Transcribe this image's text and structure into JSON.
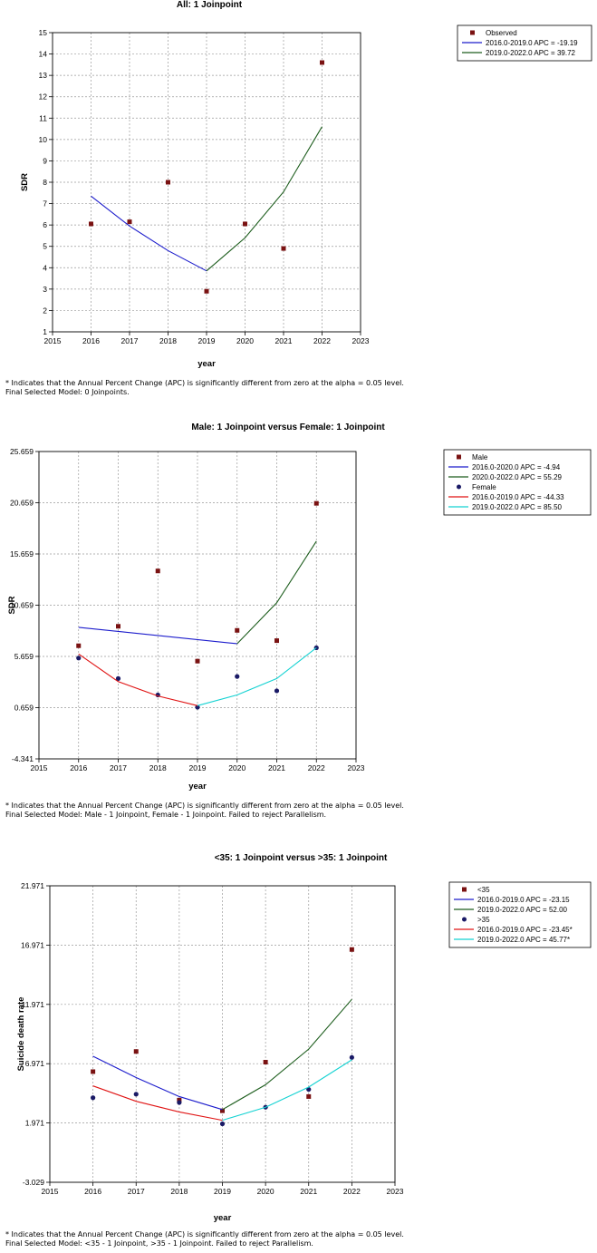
{
  "chart_data": [
    {
      "type": "line",
      "title": "All: 1 Joinpoint",
      "xlabel": "year",
      "ylabel": "SDR",
      "xlim": [
        2015,
        2023
      ],
      "ylim": [
        1,
        15
      ],
      "xticks": [
        2015,
        2016,
        2017,
        2018,
        2019,
        2020,
        2021,
        2022,
        2023
      ],
      "yticks": [
        "1",
        "2",
        "3",
        "4",
        "5",
        "6",
        "7",
        "8",
        "9",
        "10",
        "11",
        "12",
        "13",
        "14",
        "15"
      ],
      "ytick_values": [
        1,
        2,
        3,
        4,
        5,
        6,
        7,
        8,
        9,
        10,
        11,
        12,
        13,
        14,
        15
      ],
      "grid": true,
      "legend_position": "top-right",
      "series": [
        {
          "name": "Observed",
          "type": "scatter",
          "marker": "square",
          "color": "#7a1212",
          "x": [
            2016,
            2017,
            2018,
            2019,
            2020,
            2021,
            2022
          ],
          "y": [
            6.05,
            6.15,
            8.0,
            2.9,
            6.05,
            4.9,
            13.6
          ]
        },
        {
          "name": "2016.0-2019.0 APC  =  -19.19",
          "type": "line",
          "color": "#1c1ccc",
          "x": [
            2016,
            2017,
            2018,
            2019
          ],
          "y": [
            7.35,
            5.95,
            4.8,
            3.85
          ]
        },
        {
          "name": "2019.0-2022.0 APC  =  39.72",
          "type": "line",
          "color": "#1e5e1e",
          "x": [
            2019,
            2020,
            2021,
            2022
          ],
          "y": [
            3.85,
            5.4,
            7.55,
            10.6
          ]
        }
      ],
      "footnotes": [
        "* Indicates that the Annual Percent Change (APC) is significantly different from zero at the alpha = 0.05 level.",
        "Final Selected Model: 0 Joinpoints."
      ]
    },
    {
      "type": "line",
      "title": "Male: 1 Joinpoint  versus  Female: 1 Joinpoint",
      "xlabel": "year",
      "ylabel": "SDR",
      "xlim": [
        2015,
        2023
      ],
      "ylim": [
        -4.341,
        25.659
      ],
      "xticks": [
        2015,
        2016,
        2017,
        2018,
        2019,
        2020,
        2021,
        2022,
        2023
      ],
      "yticks": [
        "-4.341",
        "0.659",
        "5.659",
        "10.659",
        "15.659",
        "20.659",
        "25.659"
      ],
      "ytick_values": [
        -4.341,
        0.659,
        5.659,
        10.659,
        15.659,
        20.659,
        25.659
      ],
      "grid": true,
      "legend_position": "top-right",
      "series": [
        {
          "name": "Male",
          "type": "scatter",
          "marker": "square",
          "color": "#7a1212",
          "x": [
            2016,
            2017,
            2018,
            2019,
            2020,
            2021,
            2022
          ],
          "y": [
            6.7,
            8.6,
            14.0,
            5.2,
            8.2,
            7.2,
            20.6
          ]
        },
        {
          "name": "2016.0-2020.0 APC  =  -4.94",
          "type": "line",
          "color": "#1c1ccc",
          "x": [
            2016,
            2020
          ],
          "y": [
            8.5,
            6.9
          ]
        },
        {
          "name": "2020.0-2022.0 APC  =  55.29",
          "type": "line",
          "color": "#1e5e1e",
          "x": [
            2020,
            2021,
            2022
          ],
          "y": [
            6.9,
            10.9,
            16.9
          ]
        },
        {
          "name": "Female",
          "type": "scatter",
          "marker": "circle",
          "color": "#1a1a66",
          "x": [
            2016,
            2017,
            2018,
            2019,
            2020,
            2021,
            2022
          ],
          "y": [
            5.5,
            3.5,
            1.9,
            0.7,
            3.7,
            2.3,
            6.5
          ]
        },
        {
          "name": "2016.0-2019.0 APC  =  -44.33",
          "type": "line",
          "color": "#e01414",
          "x": [
            2016,
            2017,
            2018,
            2019
          ],
          "y": [
            5.9,
            3.2,
            1.8,
            0.85
          ]
        },
        {
          "name": "2019.0-2022.0 APC  =  85.50",
          "type": "line",
          "color": "#14d2d2",
          "x": [
            2019,
            2020,
            2021,
            2022
          ],
          "y": [
            0.85,
            1.9,
            3.5,
            6.5
          ]
        }
      ],
      "footnotes": [
        "* Indicates that the Annual Percent Change (APC) is significantly different from zero at the alpha = 0.05 level.",
        "Final Selected Model: Male - 1 Joinpoint, Female - 1 Joinpoint. Failed to reject Parallelism."
      ]
    },
    {
      "type": "line",
      "title": "<35: 1 Joinpoint  versus  >35: 1 Joinpoint",
      "xlabel": "year",
      "ylabel": "Suicide death rate",
      "xlim": [
        2015,
        2023
      ],
      "ylim": [
        -3.029,
        21.971
      ],
      "xticks": [
        2015,
        2016,
        2017,
        2018,
        2019,
        2020,
        2021,
        2022,
        2023
      ],
      "yticks": [
        "-3.029",
        "1.971",
        "6.971",
        "11.971",
        "16.971",
        "21.971"
      ],
      "ytick_values": [
        -3.029,
        1.971,
        6.971,
        11.971,
        16.971,
        21.971
      ],
      "grid": true,
      "legend_position": "top-right",
      "series": [
        {
          "name": "<35",
          "type": "scatter",
          "marker": "square",
          "color": "#7a1212",
          "x": [
            2016,
            2017,
            2018,
            2019,
            2020,
            2021,
            2022
          ],
          "y": [
            6.3,
            8.0,
            3.9,
            3.0,
            7.1,
            4.2,
            16.6
          ]
        },
        {
          "name": "2016.0-2019.0 APC  =  -23.15",
          "type": "line",
          "color": "#1c1ccc",
          "x": [
            2016,
            2017,
            2018,
            2019
          ],
          "y": [
            7.6,
            5.8,
            4.2,
            3.1
          ]
        },
        {
          "name": "2019.0-2022.0 APC  =  52.00",
          "type": "line",
          "color": "#1e5e1e",
          "x": [
            2019,
            2020,
            2021,
            2022
          ],
          "y": [
            3.1,
            5.2,
            8.2,
            12.4
          ]
        },
        {
          "name": ">35",
          "type": "scatter",
          "marker": "circle",
          "color": "#1a1a66",
          "x": [
            2016,
            2017,
            2018,
            2019,
            2020,
            2021,
            2022
          ],
          "y": [
            4.1,
            4.4,
            3.7,
            1.9,
            3.3,
            4.8,
            7.5
          ]
        },
        {
          "name": "2016.0-2019.0 APC  =  -23.45*",
          "type": "line",
          "color": "#e01414",
          "x": [
            2016,
            2017,
            2018,
            2019
          ],
          "y": [
            5.1,
            3.8,
            2.9,
            2.2
          ]
        },
        {
          "name": "2019.0-2022.0 APC  =  45.77*",
          "type": "line",
          "color": "#14d2d2",
          "x": [
            2019,
            2020,
            2021,
            2022
          ],
          "y": [
            2.2,
            3.3,
            5.0,
            7.3
          ]
        }
      ],
      "footnotes": [
        "* Indicates that the Annual Percent Change (APC) is significantly different from zero at the alpha = 0.05 level.",
        "Final Selected Model: <35 - 1 Joinpoint, >35 - 1 Joinpoint. Failed to reject Parallelism."
      ]
    }
  ]
}
